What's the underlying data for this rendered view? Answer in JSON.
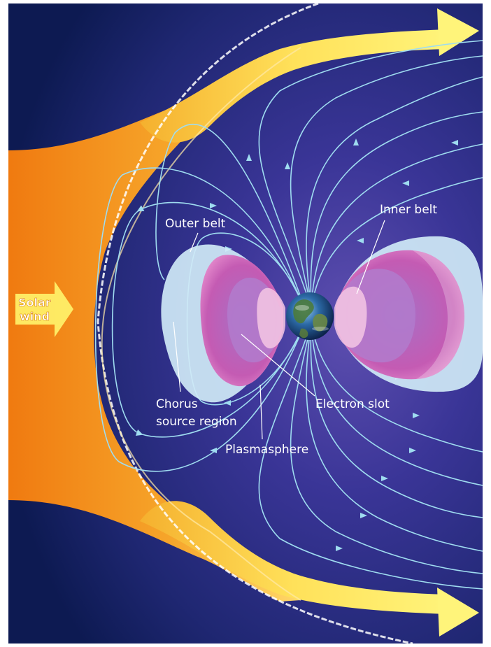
{
  "labels": {
    "solar_wind_line1": "Solar",
    "solar_wind_line2": "wind",
    "outer_belt": "Outer belt",
    "inner_belt": "Inner belt",
    "chorus_line1": "Chorus",
    "chorus_line2": "source region",
    "electron_slot": "Electron slot",
    "plasmasphere": "Plasmasphere"
  },
  "colors": {
    "space_dark": "#0d1a52",
    "space_mid": "#2a2a86",
    "magnetosphere": "#3a3597",
    "solar_wind_orange": "#f29a1a",
    "solar_wind_yellow": "#fff26a",
    "field_line": "#9fdcf0",
    "outer_belt_blue": "#cfe9f6",
    "belt_magenta": "#c63ca6",
    "belt_pink": "#f4c7e4"
  },
  "icons": {
    "earth": "earth-globe-icon",
    "solar_wind_arrow": "arrow-right-icon"
  }
}
